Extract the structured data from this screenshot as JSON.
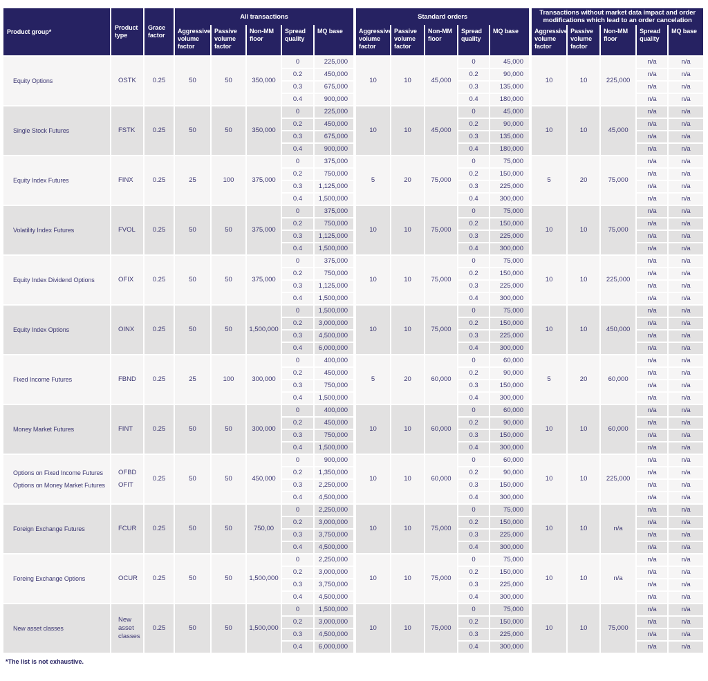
{
  "table": {
    "left_headers": [
      "Product group*",
      "Product type",
      "Grace factor"
    ],
    "groups": [
      {
        "title": "All transactions",
        "columns": [
          "Aggressive volume factor",
          "Passive volume factor",
          "Non-MM floor",
          "Spread quality",
          "MQ base"
        ]
      },
      {
        "title": "Standard orders",
        "columns": [
          "Aggressive volume factor",
          "Passive volume factor",
          "Non-MM floor",
          "Spread quality",
          "MQ base"
        ]
      },
      {
        "title": "Transactions without  market data impact and order modifications which lead to an order cancelation",
        "columns": [
          "Aggressive volume factor",
          "Passive volume factor",
          "Non-MM floor",
          "Spread quality",
          "MQ base"
        ]
      }
    ],
    "spread_levels": [
      "0",
      "0.2",
      "0.3",
      "0.4"
    ],
    "rows": [
      {
        "product_group": [
          "Equity Options"
        ],
        "product_type": [
          "OSTK"
        ],
        "grace_factor": "0.25",
        "sections": [
          {
            "aggressive": "50",
            "passive": "50",
            "non_mm_floor": "350,000",
            "spread_quality": [
              "0",
              "0.2",
              "0.3",
              "0.4"
            ],
            "mq_base": [
              "225,000",
              "450,000",
              "675,000",
              "900,000"
            ]
          },
          {
            "aggressive": "10",
            "passive": "10",
            "non_mm_floor": "45,000",
            "spread_quality": [
              "0",
              "0.2",
              "0.3",
              "0.4"
            ],
            "mq_base": [
              "45,000",
              "90,000",
              "135,000",
              "180,000"
            ]
          },
          {
            "aggressive": "10",
            "passive": "10",
            "non_mm_floor": "225,000",
            "spread_quality": [
              "n/a",
              "n/a",
              "n/a",
              "n/a"
            ],
            "mq_base": [
              "n/a",
              "n/a",
              "n/a",
              "n/a"
            ]
          }
        ]
      },
      {
        "product_group": [
          "Single Stock Futures"
        ],
        "product_type": [
          "FSTK"
        ],
        "grace_factor": "0.25",
        "sections": [
          {
            "aggressive": "50",
            "passive": "50",
            "non_mm_floor": "350,000",
            "spread_quality": [
              "0",
              "0.2",
              "0.3",
              "0.4"
            ],
            "mq_base": [
              "225,000",
              "450,000",
              "675,000",
              "900,000"
            ]
          },
          {
            "aggressive": "10",
            "passive": "10",
            "non_mm_floor": "45,000",
            "spread_quality": [
              "0",
              "0.2",
              "0.3",
              "0.4"
            ],
            "mq_base": [
              "45,000",
              "90,000",
              "135,000",
              "180,000"
            ]
          },
          {
            "aggressive": "10",
            "passive": "10",
            "non_mm_floor": "45,000",
            "spread_quality": [
              "n/a",
              "n/a",
              "n/a",
              "n/a"
            ],
            "mq_base": [
              "n/a",
              "n/a",
              "n/a",
              "n/a"
            ]
          }
        ]
      },
      {
        "product_group": [
          "Equity Index Futures"
        ],
        "product_type": [
          "FINX"
        ],
        "grace_factor": "0.25",
        "sections": [
          {
            "aggressive": "25",
            "passive": "100",
            "non_mm_floor": "375,000",
            "spread_quality": [
              "0",
              "0.2",
              "0.3",
              "0.4"
            ],
            "mq_base": [
              "375,000",
              "750,000",
              "1,125,000",
              "1,500,000"
            ]
          },
          {
            "aggressive": "5",
            "passive": "20",
            "non_mm_floor": "75,000",
            "spread_quality": [
              "0",
              "0.2",
              "0.3",
              "0.4"
            ],
            "mq_base": [
              "75,000",
              "150,000",
              "225,000",
              "300,000"
            ]
          },
          {
            "aggressive": "5",
            "passive": "20",
            "non_mm_floor": "75,000",
            "spread_quality": [
              "n/a",
              "n/a",
              "n/a",
              "n/a"
            ],
            "mq_base": [
              "n/a",
              "n/a",
              "n/a",
              "n/a"
            ]
          }
        ]
      },
      {
        "product_group": [
          "Volatility Index Futures"
        ],
        "product_type": [
          "FVOL"
        ],
        "grace_factor": "0.25",
        "sections": [
          {
            "aggressive": "50",
            "passive": "50",
            "non_mm_floor": "375,000",
            "spread_quality": [
              "0",
              "0.2",
              "0.3",
              "0.4"
            ],
            "mq_base": [
              "375,000",
              "750,000",
              "1,125,000",
              "1,500,000"
            ]
          },
          {
            "aggressive": "10",
            "passive": "10",
            "non_mm_floor": "75,000",
            "spread_quality": [
              "0",
              "0.2",
              "0.3",
              "0.4"
            ],
            "mq_base": [
              "75,000",
              "150,000",
              "225,000",
              "300,000"
            ]
          },
          {
            "aggressive": "10",
            "passive": "10",
            "non_mm_floor": "75,000",
            "spread_quality": [
              "n/a",
              "n/a",
              "n/a",
              "n/a"
            ],
            "mq_base": [
              "n/a",
              "n/a",
              "n/a",
              "n/a"
            ]
          }
        ]
      },
      {
        "product_group": [
          "Equity Index Dividend Options"
        ],
        "product_type": [
          "OFIX"
        ],
        "grace_factor": "0.25",
        "sections": [
          {
            "aggressive": "50",
            "passive": "50",
            "non_mm_floor": "375,000",
            "spread_quality": [
              "0",
              "0.2",
              "0.3",
              "0.4"
            ],
            "mq_base": [
              "375,000",
              "750,000",
              "1,125,000",
              "1,500,000"
            ]
          },
          {
            "aggressive": "10",
            "passive": "10",
            "non_mm_floor": "75,000",
            "spread_quality": [
              "0",
              "0.2",
              "0.3",
              "0.4"
            ],
            "mq_base": [
              "75,000",
              "150,000",
              "225,000",
              "300,000"
            ]
          },
          {
            "aggressive": "10",
            "passive": "10",
            "non_mm_floor": "225,000",
            "spread_quality": [
              "n/a",
              "n/a",
              "n/a",
              "n/a"
            ],
            "mq_base": [
              "n/a",
              "n/a",
              "n/a",
              "n/a"
            ]
          }
        ]
      },
      {
        "product_group": [
          "Equity Index Options"
        ],
        "product_type": [
          "OINX"
        ],
        "grace_factor": "0.25",
        "sections": [
          {
            "aggressive": "50",
            "passive": "50",
            "non_mm_floor": "1,500,000",
            "spread_quality": [
              "0",
              "0.2",
              "0.3",
              "0.4"
            ],
            "mq_base": [
              "1,500,000",
              "3,000,000",
              "4,500,000",
              "6,000,000"
            ]
          },
          {
            "aggressive": "10",
            "passive": "10",
            "non_mm_floor": "75,000",
            "spread_quality": [
              "0",
              "0.2",
              "0.3",
              "0.4"
            ],
            "mq_base": [
              "75,000",
              "150,000",
              "225,000",
              "300,000"
            ]
          },
          {
            "aggressive": "10",
            "passive": "10",
            "non_mm_floor": "450,000",
            "spread_quality": [
              "n/a",
              "n/a",
              "n/a",
              "n/a"
            ],
            "mq_base": [
              "n/a",
              "n/a",
              "n/a",
              "n/a"
            ]
          }
        ]
      },
      {
        "product_group": [
          "Fixed Income Futures"
        ],
        "product_type": [
          "FBND"
        ],
        "grace_factor": "0.25",
        "sections": [
          {
            "aggressive": "25",
            "passive": "100",
            "non_mm_floor": "300,000",
            "spread_quality": [
              "0",
              "0.2",
              "0.3",
              "0.4"
            ],
            "mq_base": [
              "400,000",
              "450,000",
              "750,000",
              "1,500,000"
            ]
          },
          {
            "aggressive": "5",
            "passive": "20",
            "non_mm_floor": "60,000",
            "spread_quality": [
              "0",
              "0.2",
              "0.3",
              "0.4"
            ],
            "mq_base": [
              "60,000",
              "90,000",
              "150,000",
              "300,000"
            ]
          },
          {
            "aggressive": "5",
            "passive": "20",
            "non_mm_floor": "60,000",
            "spread_quality": [
              "n/a",
              "n/a",
              "n/a",
              "n/a"
            ],
            "mq_base": [
              "n/a",
              "n/a",
              "n/a",
              "n/a"
            ]
          }
        ]
      },
      {
        "product_group": [
          "Money Market Futures"
        ],
        "product_type": [
          "FINT"
        ],
        "grace_factor": "0.25",
        "sections": [
          {
            "aggressive": "50",
            "passive": "50",
            "non_mm_floor": "300,000",
            "spread_quality": [
              "0",
              "0.2",
              "0.3",
              "0.4"
            ],
            "mq_base": [
              "400,000",
              "450,000",
              "750,000",
              "1,500,000"
            ]
          },
          {
            "aggressive": "10",
            "passive": "10",
            "non_mm_floor": "60,000",
            "spread_quality": [
              "0",
              "0.2",
              "0.3",
              "0.4"
            ],
            "mq_base": [
              "60,000",
              "90,000",
              "150,000",
              "300,000"
            ]
          },
          {
            "aggressive": "10",
            "passive": "10",
            "non_mm_floor": "60,000",
            "spread_quality": [
              "n/a",
              "n/a",
              "n/a",
              "n/a"
            ],
            "mq_base": [
              "n/a",
              "n/a",
              "n/a",
              "n/a"
            ]
          }
        ]
      },
      {
        "product_group": [
          "Options on Fixed Income Futures",
          "Options on Money Market Futures"
        ],
        "product_type": [
          "OFBD",
          "OFIT"
        ],
        "grace_factor": "0.25",
        "sections": [
          {
            "aggressive": "50",
            "passive": "50",
            "non_mm_floor": "450,000",
            "spread_quality": [
              "0",
              "0.2",
              "0.3",
              "0.4"
            ],
            "mq_base": [
              "900,000",
              "1,350,000",
              "2,250,000",
              "4,500,000"
            ]
          },
          {
            "aggressive": "10",
            "passive": "10",
            "non_mm_floor": "60,000",
            "spread_quality": [
              "0",
              "0.2",
              "0.3",
              "0.4"
            ],
            "mq_base": [
              "60,000",
              "90,000",
              "150,000",
              "300,000"
            ]
          },
          {
            "aggressive": "10",
            "passive": "10",
            "non_mm_floor": "225,000",
            "spread_quality": [
              "n/a",
              "n/a",
              "n/a",
              "n/a"
            ],
            "mq_base": [
              "n/a",
              "n/a",
              "n/a",
              "n/a"
            ]
          }
        ]
      },
      {
        "product_group": [
          "Foreign Exchange Futures"
        ],
        "product_type": [
          "FCUR"
        ],
        "grace_factor": "0.25",
        "sections": [
          {
            "aggressive": "50",
            "passive": "50",
            "non_mm_floor": "750,00",
            "spread_quality": [
              "0",
              "0.2",
              "0.3",
              "0.4"
            ],
            "mq_base": [
              "2,250,000",
              "3,000,000",
              "3,750,000",
              "4,500,000"
            ]
          },
          {
            "aggressive": "10",
            "passive": "10",
            "non_mm_floor": "75,000",
            "spread_quality": [
              "0",
              "0.2",
              "0.3",
              "0.4"
            ],
            "mq_base": [
              "75,000",
              "150,000",
              "225,000",
              "300,000"
            ]
          },
          {
            "aggressive": "10",
            "passive": "10",
            "non_mm_floor": "n/a",
            "spread_quality": [
              "n/a",
              "n/a",
              "n/a",
              "n/a"
            ],
            "mq_base": [
              "n/a",
              "n/a",
              "n/a",
              "n/a"
            ]
          }
        ]
      },
      {
        "product_group": [
          "Foreing Exchange Options"
        ],
        "product_type": [
          "OCUR"
        ],
        "grace_factor": "0.25",
        "sections": [
          {
            "aggressive": "50",
            "passive": "50",
            "non_mm_floor": "1,500,000",
            "spread_quality": [
              "0",
              "0.2",
              "0.3",
              "0.4"
            ],
            "mq_base": [
              "2,250,000",
              "3,000,000",
              "3,750,000",
              "4,500,000"
            ]
          },
          {
            "aggressive": "10",
            "passive": "10",
            "non_mm_floor": "75,000",
            "spread_quality": [
              "0",
              "0.2",
              "0.3",
              "0.4"
            ],
            "mq_base": [
              "75,000",
              "150,000",
              "225,000",
              "300,000"
            ]
          },
          {
            "aggressive": "10",
            "passive": "10",
            "non_mm_floor": "n/a",
            "spread_quality": [
              "n/a",
              "n/a",
              "n/a",
              "n/a"
            ],
            "mq_base": [
              "n/a",
              "n/a",
              "n/a",
              "n/a"
            ]
          }
        ]
      },
      {
        "product_group": [
          "New asset classes"
        ],
        "product_type": [
          "New asset classes"
        ],
        "grace_factor": "0.25",
        "sections": [
          {
            "aggressive": "50",
            "passive": "50",
            "non_mm_floor": "1,500,000",
            "spread_quality": [
              "0",
              "0.2",
              "0.3",
              "0.4"
            ],
            "mq_base": [
              "1,500,000",
              "3,000,000",
              "4,500,000",
              "6,000,000"
            ]
          },
          {
            "aggressive": "10",
            "passive": "10",
            "non_mm_floor": "75,000",
            "spread_quality": [
              "0",
              "0.2",
              "0.3",
              "0.4"
            ],
            "mq_base": [
              "75,000",
              "150,000",
              "225,000",
              "300,000"
            ]
          },
          {
            "aggressive": "10",
            "passive": "10",
            "non_mm_floor": "75,000",
            "spread_quality": [
              "n/a",
              "n/a",
              "n/a",
              "n/a"
            ],
            "mq_base": [
              "n/a",
              "n/a",
              "n/a",
              "n/a"
            ]
          }
        ]
      }
    ],
    "footnote": "*The list is not exhaustive."
  }
}
